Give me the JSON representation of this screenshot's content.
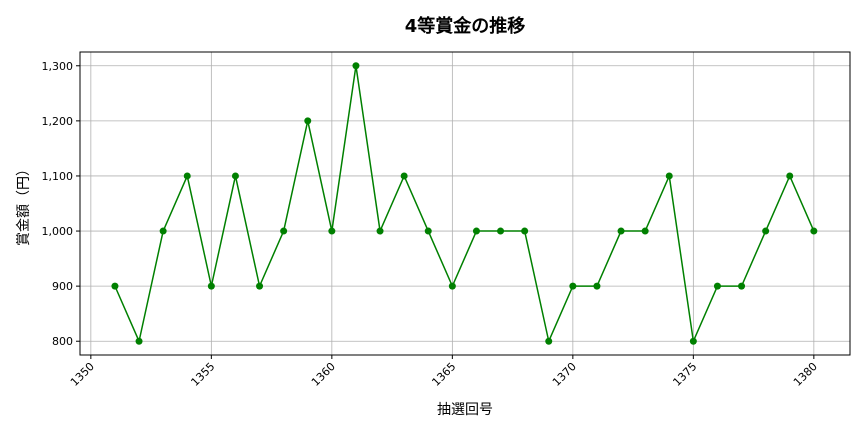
{
  "chart_data": {
    "type": "line",
    "title": "4等賞金の推移",
    "xlabel": "抽選回号",
    "ylabel": "賞金額（円）",
    "xlim": [
      1349.55,
      1381.5
    ],
    "ylim": [
      775,
      1325
    ],
    "xticks": [
      1350,
      1355,
      1360,
      1365,
      1370,
      1375,
      1380
    ],
    "xtick_labels": [
      "1350",
      "1355",
      "1360",
      "1365",
      "1370",
      "1375",
      "1380"
    ],
    "yticks": [
      800,
      900,
      1000,
      1100,
      1200,
      1300
    ],
    "ytick_labels": [
      "800",
      "900",
      "1,000",
      "1,100",
      "1,200",
      "1,300"
    ],
    "grid": true,
    "color": "#008000",
    "x": [
      1351,
      1352,
      1353,
      1354,
      1355,
      1356,
      1357,
      1358,
      1359,
      1360,
      1361,
      1362,
      1363,
      1364,
      1365,
      1366,
      1367,
      1368,
      1369,
      1370,
      1371,
      1372,
      1373,
      1374,
      1375,
      1376,
      1377,
      1378,
      1379,
      1380
    ],
    "y": [
      900,
      800,
      1000,
      1100,
      900,
      1100,
      900,
      1000,
      1200,
      1000,
      1300,
      1000,
      1100,
      1000,
      900,
      1000,
      1000,
      1000,
      800,
      900,
      900,
      1000,
      1000,
      1100,
      800,
      900,
      900,
      1000,
      1100,
      1000
    ]
  }
}
